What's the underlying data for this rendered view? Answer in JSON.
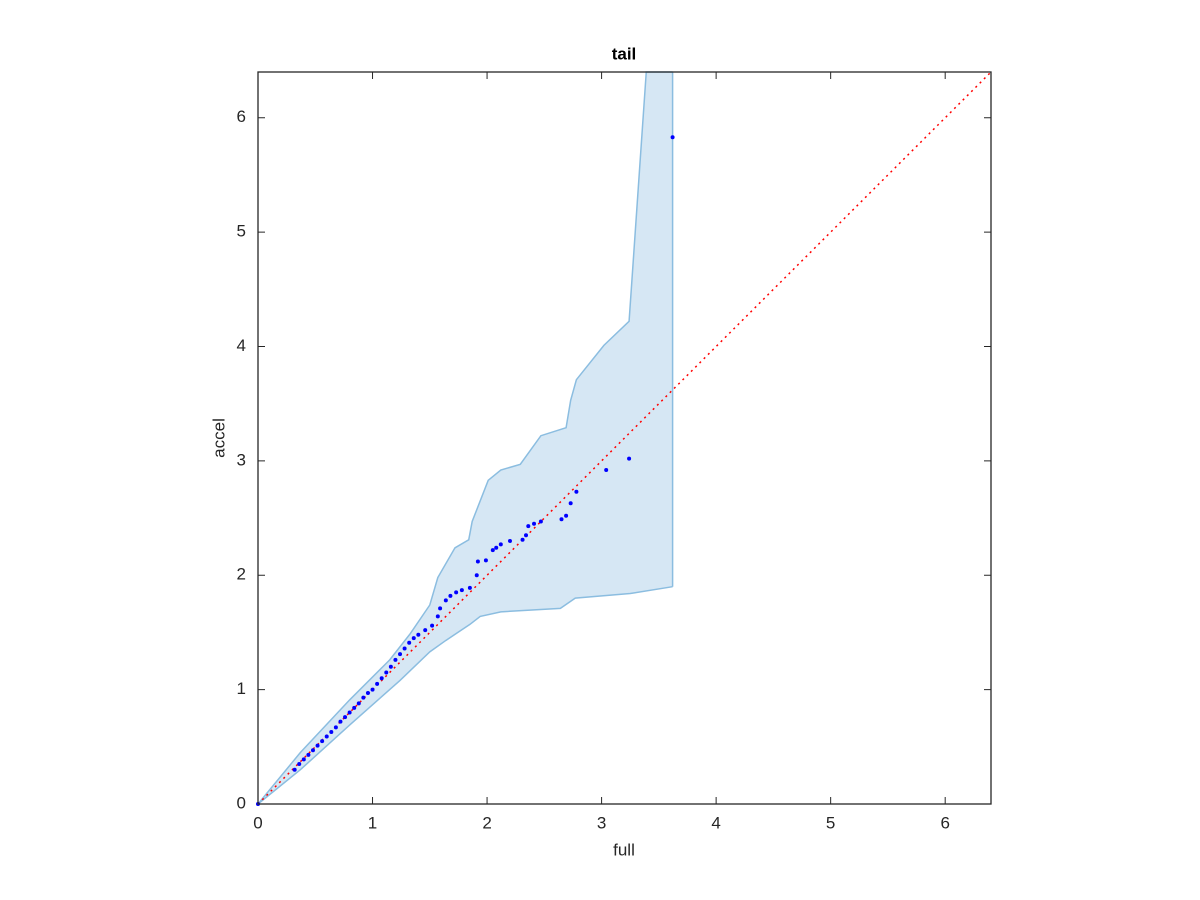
{
  "chart_data": {
    "type": "scatter",
    "title": "tail",
    "x_label": "full",
    "y_label": "accel",
    "xlim": [
      0,
      6.4
    ],
    "ylim": [
      0,
      6.4
    ],
    "xticks": [
      0,
      1,
      2,
      3,
      4,
      5,
      6
    ],
    "yticks": [
      0,
      1,
      2,
      3,
      4,
      5,
      6
    ],
    "series": [
      {
        "color": "#0000ff",
        "x": [
          0,
          0.32,
          0.36,
          0.4,
          0.44,
          0.48,
          0.52,
          0.56,
          0.6,
          0.64,
          0.68,
          0.72,
          0.76,
          0.8,
          0.84,
          0.88,
          0.92,
          0.96,
          1.0,
          1.04,
          1.08,
          1.12,
          1.16,
          1.2,
          1.24,
          1.28,
          1.32,
          1.36,
          1.4,
          1.46,
          1.52,
          1.57,
          1.59,
          1.64,
          1.68,
          1.73,
          1.78,
          1.85,
          1.91,
          1.92,
          1.99,
          2.05,
          2.08,
          2.12,
          2.2,
          2.31,
          2.34,
          2.36,
          2.41,
          2.47,
          2.65,
          2.69,
          2.73,
          2.78,
          3.04,
          3.24,
          3.62
        ],
        "values": [
          0,
          0.3,
          0.35,
          0.39,
          0.43,
          0.47,
          0.51,
          0.55,
          0.59,
          0.63,
          0.67,
          0.72,
          0.76,
          0.8,
          0.84,
          0.88,
          0.93,
          0.97,
          1.0,
          1.05,
          1.1,
          1.15,
          1.2,
          1.26,
          1.31,
          1.36,
          1.41,
          1.45,
          1.48,
          1.52,
          1.56,
          1.64,
          1.71,
          1.78,
          1.82,
          1.85,
          1.87,
          1.89,
          2.0,
          2.12,
          2.13,
          2.22,
          2.24,
          2.27,
          2.3,
          2.31,
          2.35,
          2.43,
          2.45,
          2.47,
          2.49,
          2.52,
          2.63,
          2.73,
          2.92,
          3.02,
          5.83
        ]
      }
    ],
    "band": {
      "color": "#d6e7f4",
      "edge_color": "#8bbde0",
      "upper": {
        "x": [
          0,
          0.37,
          0.8,
          1.15,
          1.33,
          1.5,
          1.57,
          1.72,
          1.84,
          1.87,
          2.01,
          2.12,
          2.29,
          2.47,
          2.69,
          2.73,
          2.78,
          3.02,
          3.24,
          3.39,
          3.62
        ],
        "y": [
          0,
          0.45,
          0.91,
          1.26,
          1.49,
          1.74,
          1.98,
          2.24,
          2.31,
          2.47,
          2.83,
          2.92,
          2.97,
          3.22,
          3.29,
          3.53,
          3.71,
          4.01,
          4.22,
          6.4,
          6.4
        ]
      },
      "lower": {
        "x": [
          0,
          0.37,
          0.8,
          1.24,
          1.5,
          1.64,
          1.85,
          1.94,
          2.12,
          2.64,
          2.77,
          3.25,
          3.62
        ],
        "y": [
          0,
          0.3,
          0.69,
          1.08,
          1.33,
          1.43,
          1.57,
          1.64,
          1.68,
          1.71,
          1.8,
          1.84,
          1.9
        ]
      }
    },
    "reference_line": {
      "color": "#ff0000",
      "x": [
        0,
        6.4
      ],
      "y": [
        0,
        6.4
      ]
    }
  }
}
